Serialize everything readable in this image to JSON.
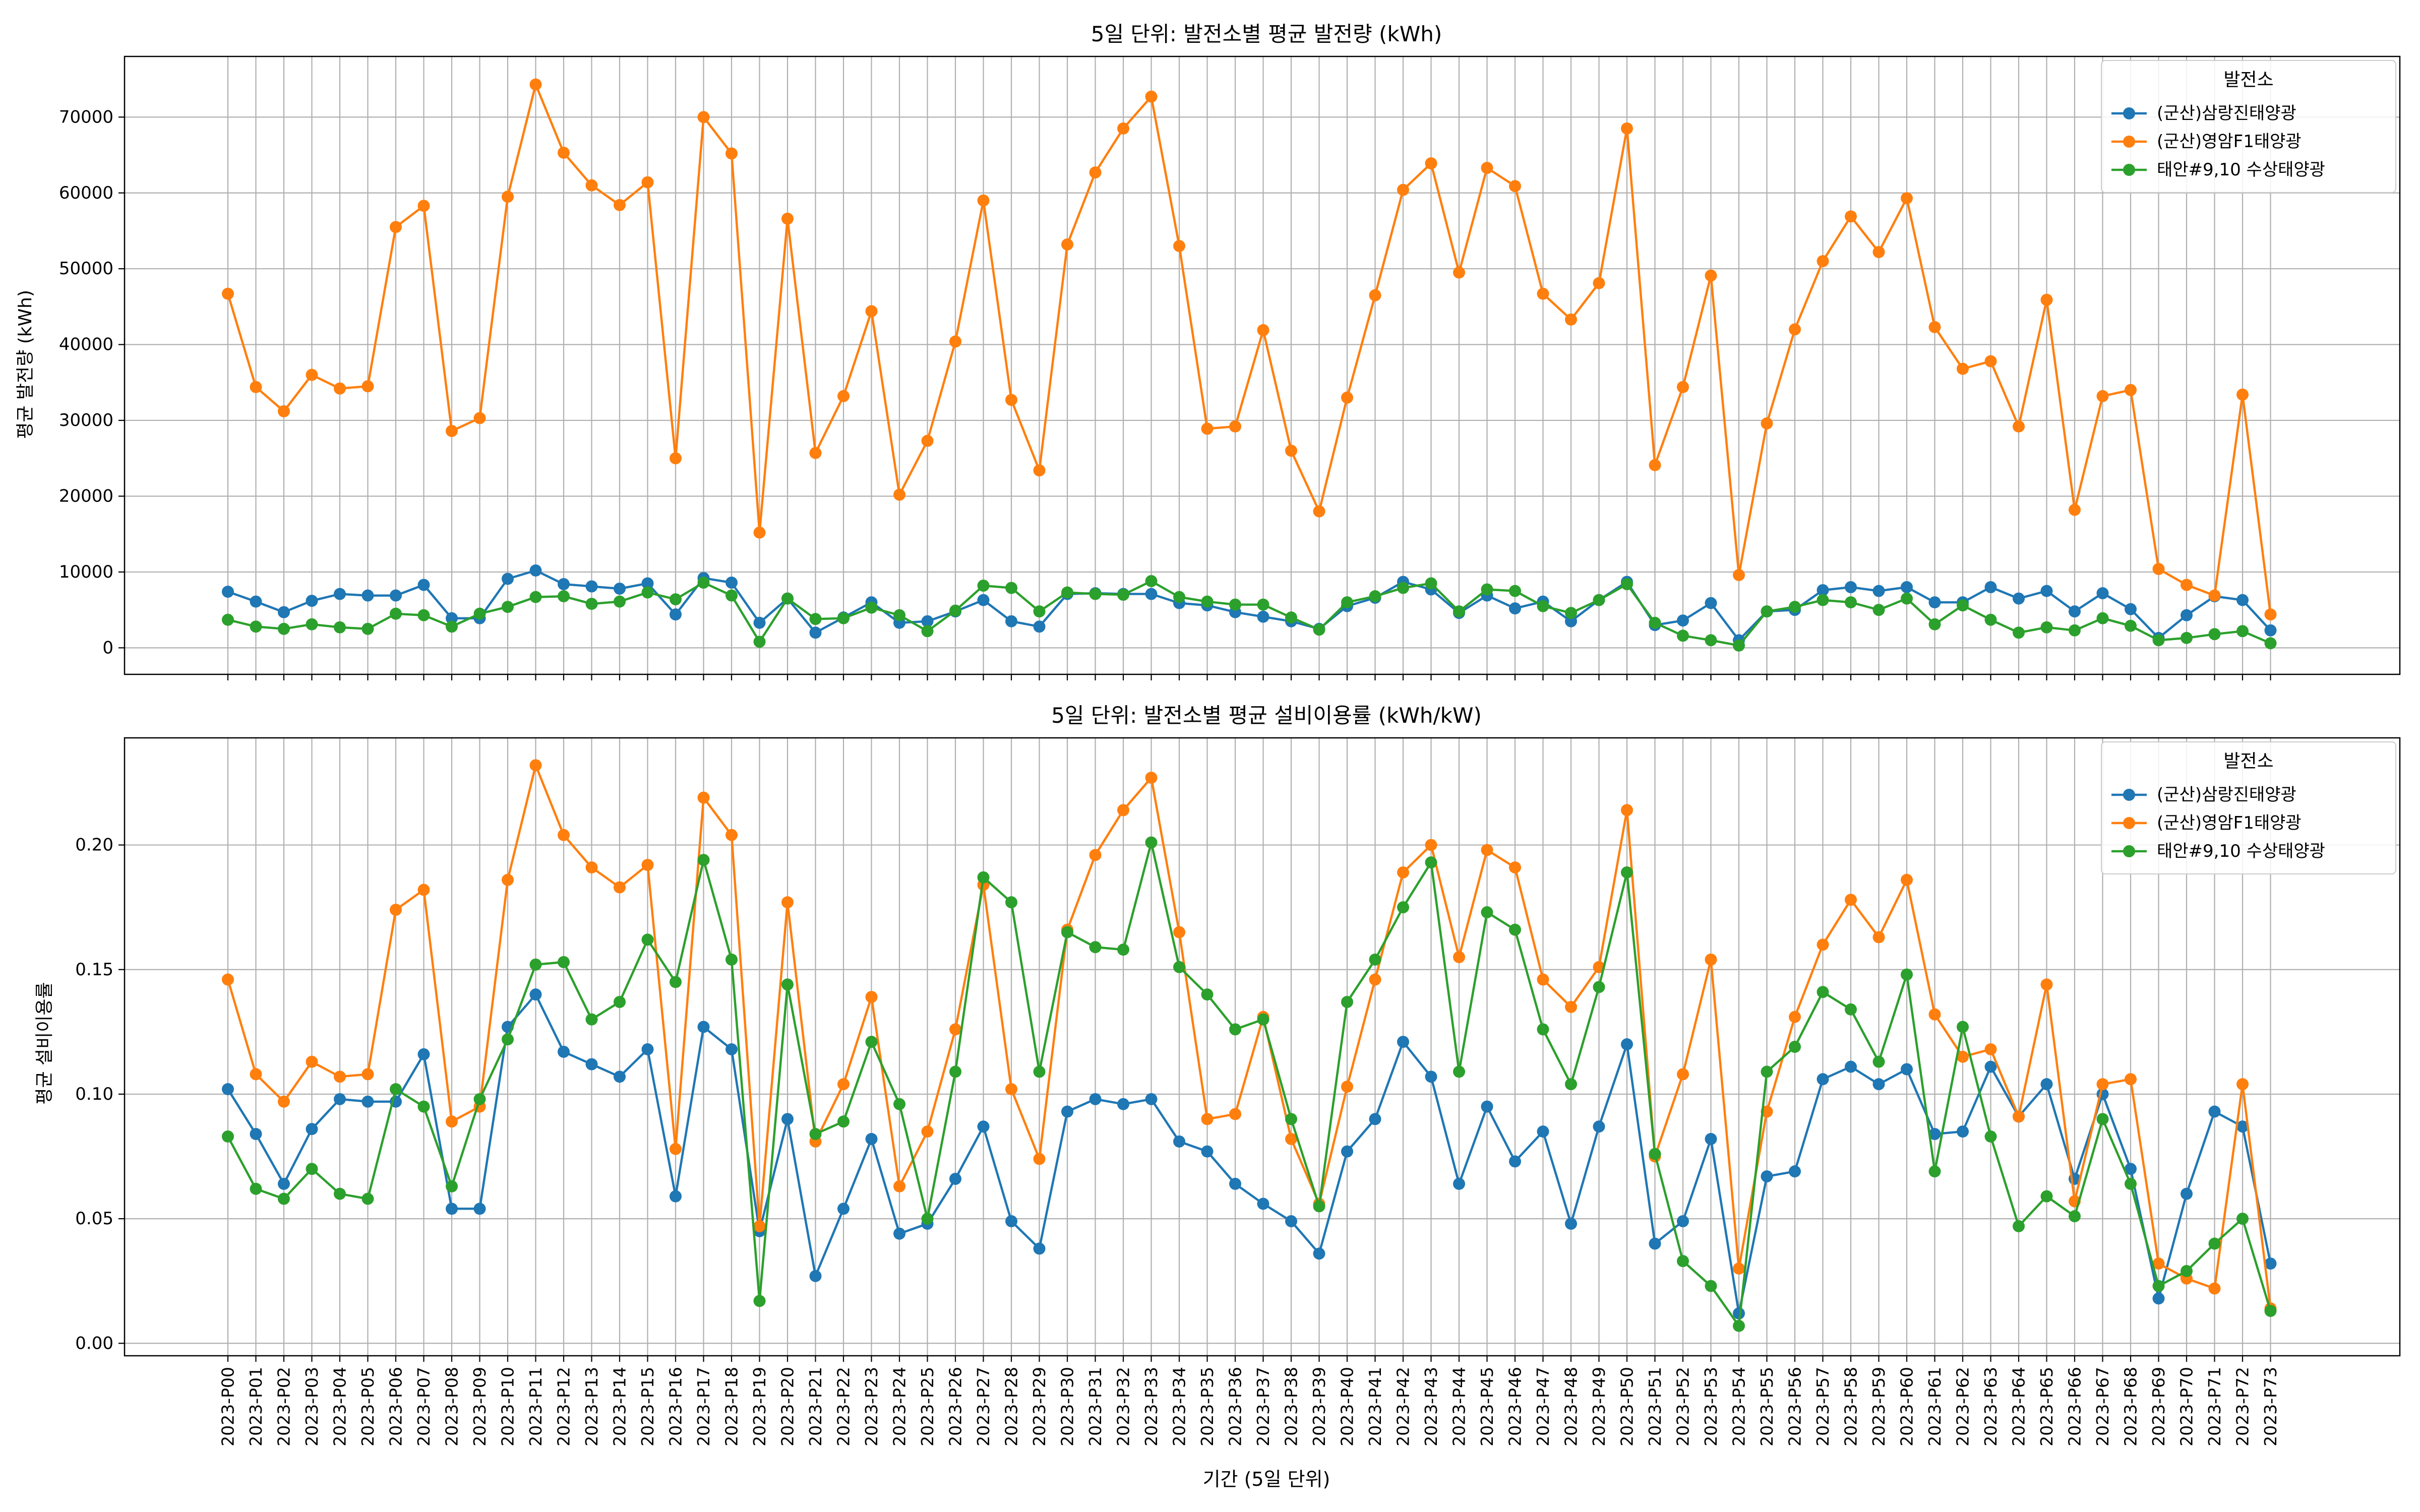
{
  "colors": {
    "samnangjin": "#1f77b4",
    "yeongam": "#ff7f0e",
    "taean": "#2ca02c",
    "grid": "#b0b0b0",
    "axis": "#000000"
  },
  "xlabel": "기간 (5일 단위)",
  "legend_title": "발전소",
  "chart_data": [
    {
      "type": "line",
      "title": "5일 단위: 발전소별 평균 발전량 (kWh)",
      "xlabel": "",
      "ylabel": "평균 발전량 (kWh)",
      "ylim": [
        -3500,
        78000
      ],
      "yticks": [
        0,
        10000,
        20000,
        30000,
        40000,
        50000,
        60000,
        70000
      ],
      "ytick_labels": [
        "0",
        "10000",
        "20000",
        "30000",
        "40000",
        "50000",
        "60000",
        "70000"
      ],
      "grid": true,
      "legend": "top-right",
      "legend_title": "발전소",
      "categories": [
        "2023-P00",
        "2023-P01",
        "2023-P02",
        "2023-P03",
        "2023-P04",
        "2023-P05",
        "2023-P06",
        "2023-P07",
        "2023-P08",
        "2023-P09",
        "2023-P10",
        "2023-P11",
        "2023-P12",
        "2023-P13",
        "2023-P14",
        "2023-P15",
        "2023-P16",
        "2023-P17",
        "2023-P18",
        "2023-P19",
        "2023-P20",
        "2023-P21",
        "2023-P22",
        "2023-P23",
        "2023-P24",
        "2023-P25",
        "2023-P26",
        "2023-P27",
        "2023-P28",
        "2023-P29",
        "2023-P30",
        "2023-P31",
        "2023-P32",
        "2023-P33",
        "2023-P34",
        "2023-P35",
        "2023-P36",
        "2023-P37",
        "2023-P38",
        "2023-P39",
        "2023-P40",
        "2023-P41",
        "2023-P42",
        "2023-P43",
        "2023-P44",
        "2023-P45",
        "2023-P46",
        "2023-P47",
        "2023-P48",
        "2023-P49",
        "2023-P50",
        "2023-P51",
        "2023-P52",
        "2023-P53",
        "2023-P54",
        "2023-P55",
        "2023-P56",
        "2023-P57",
        "2023-P58",
        "2023-P59",
        "2023-P60",
        "2023-P61",
        "2023-P62",
        "2023-P63",
        "2023-P64",
        "2023-P65",
        "2023-P66",
        "2023-P67",
        "2023-P68",
        "2023-P69",
        "2023-P70",
        "2023-P71",
        "2023-P72",
        "2023-P73"
      ],
      "series": [
        {
          "name": "(군산)삼랑진태양광",
          "color": "#1f77b4",
          "values": [
            7400,
            6100,
            4700,
            6200,
            7100,
            6900,
            6900,
            8300,
            3900,
            3900,
            9100,
            10200,
            8400,
            8100,
            7800,
            8500,
            4400,
            9200,
            8600,
            3300,
            6500,
            2000,
            4000,
            6000,
            3300,
            3500,
            4800,
            6300,
            3500,
            2800,
            7100,
            7200,
            7100,
            7100,
            5900,
            5600,
            4700,
            4100,
            3500,
            2500,
            5500,
            6600,
            8700,
            7700,
            4600,
            6900,
            5200,
            6100,
            3500,
            6300,
            8700,
            3000,
            3600,
            5900,
            1000,
            4800,
            5000,
            7600,
            8000,
            7500,
            8000,
            6000,
            6000,
            8000,
            6500,
            7500,
            4800,
            7200,
            5100,
            1300,
            4300,
            6800,
            6300,
            2300
          ]
        },
        {
          "name": "(군산)영암F1태양광",
          "color": "#ff7f0e",
          "values": [
            46700,
            34400,
            31200,
            36000,
            34200,
            34500,
            55500,
            58300,
            28600,
            30300,
            59500,
            74300,
            65300,
            61000,
            58400,
            61400,
            25000,
            70000,
            65200,
            15200,
            56600,
            25700,
            33200,
            44400,
            20200,
            27300,
            40400,
            59000,
            32700,
            23400,
            53200,
            62700,
            68500,
            72700,
            53000,
            28900,
            29200,
            41900,
            26000,
            18000,
            33000,
            46500,
            60400,
            63900,
            49500,
            63300,
            60900,
            46700,
            43300,
            48100,
            68500,
            24100,
            34400,
            49100,
            9600,
            29600,
            42000,
            51000,
            56900,
            52200,
            59300,
            42300,
            36800,
            37800,
            29200,
            45900,
            18200,
            33200,
            34000,
            10400,
            8300,
            6900,
            33400,
            4400
          ]
        },
        {
          "name": "태안#9,10 수상태양광",
          "color": "#2ca02c",
          "values": [
            3700,
            2800,
            2500,
            3100,
            2700,
            2500,
            4500,
            4300,
            2800,
            4500,
            5400,
            6700,
            6800,
            5800,
            6100,
            7300,
            6400,
            8600,
            6900,
            800,
            6500,
            3800,
            3900,
            5300,
            4300,
            2200,
            4900,
            8200,
            7900,
            4800,
            7300,
            7100,
            7000,
            8800,
            6700,
            6100,
            5700,
            5700,
            4000,
            2400,
            6000,
            6800,
            7900,
            8500,
            4800,
            7700,
            7500,
            5500,
            4600,
            6300,
            8400,
            3300,
            1600,
            1000,
            300,
            4800,
            5400,
            6300,
            6000,
            5000,
            6500,
            3100,
            5600,
            3700,
            2000,
            2700,
            2300,
            3900,
            2900,
            1000,
            1300,
            1800,
            2200,
            600
          ]
        }
      ]
    },
    {
      "type": "line",
      "title": "5일 단위: 발전소별 평균 설비이용률 (kWh/kW)",
      "xlabel": "기간 (5일 단위)",
      "ylabel": "평균 설비이용률",
      "ylim": [
        -0.005,
        0.243
      ],
      "yticks": [
        0,
        0.05,
        0.1,
        0.15,
        0.2
      ],
      "ytick_labels": [
        "0.00",
        "0.05",
        "0.10",
        "0.15",
        "0.20"
      ],
      "grid": true,
      "legend": "top-right",
      "legend_title": "발전소",
      "categories": [
        "2023-P00",
        "2023-P01",
        "2023-P02",
        "2023-P03",
        "2023-P04",
        "2023-P05",
        "2023-P06",
        "2023-P07",
        "2023-P08",
        "2023-P09",
        "2023-P10",
        "2023-P11",
        "2023-P12",
        "2023-P13",
        "2023-P14",
        "2023-P15",
        "2023-P16",
        "2023-P17",
        "2023-P18",
        "2023-P19",
        "2023-P20",
        "2023-P21",
        "2023-P22",
        "2023-P23",
        "2023-P24",
        "2023-P25",
        "2023-P26",
        "2023-P27",
        "2023-P28",
        "2023-P29",
        "2023-P30",
        "2023-P31",
        "2023-P32",
        "2023-P33",
        "2023-P34",
        "2023-P35",
        "2023-P36",
        "2023-P37",
        "2023-P38",
        "2023-P39",
        "2023-P40",
        "2023-P41",
        "2023-P42",
        "2023-P43",
        "2023-P44",
        "2023-P45",
        "2023-P46",
        "2023-P47",
        "2023-P48",
        "2023-P49",
        "2023-P50",
        "2023-P51",
        "2023-P52",
        "2023-P53",
        "2023-P54",
        "2023-P55",
        "2023-P56",
        "2023-P57",
        "2023-P58",
        "2023-P59",
        "2023-P60",
        "2023-P61",
        "2023-P62",
        "2023-P63",
        "2023-P64",
        "2023-P65",
        "2023-P66",
        "2023-P67",
        "2023-P68",
        "2023-P69",
        "2023-P70",
        "2023-P71",
        "2023-P72",
        "2023-P73"
      ],
      "series": [
        {
          "name": "(군산)삼랑진태양광",
          "color": "#1f77b4",
          "values": [
            0.102,
            0.084,
            0.064,
            0.086,
            0.098,
            0.097,
            0.097,
            0.116,
            0.054,
            0.054,
            0.127,
            0.14,
            0.117,
            0.112,
            0.107,
            0.118,
            0.059,
            0.127,
            0.118,
            0.045,
            0.09,
            0.027,
            0.054,
            0.082,
            0.044,
            0.048,
            0.066,
            0.087,
            0.049,
            0.038,
            0.093,
            0.098,
            0.096,
            0.098,
            0.081,
            0.077,
            0.064,
            0.056,
            0.049,
            0.036,
            0.077,
            0.09,
            0.121,
            0.107,
            0.064,
            0.095,
            0.073,
            0.085,
            0.048,
            0.087,
            0.12,
            0.04,
            0.049,
            0.082,
            0.012,
            0.067,
            0.069,
            0.106,
            0.111,
            0.104,
            0.11,
            0.084,
            0.085,
            0.111,
            0.091,
            0.104,
            0.066,
            0.1,
            0.07,
            0.018,
            0.06,
            0.093,
            0.087,
            0.032
          ]
        },
        {
          "name": "(군산)영암F1태양광",
          "color": "#ff7f0e",
          "values": [
            0.146,
            0.108,
            0.097,
            0.113,
            0.107,
            0.108,
            0.174,
            0.182,
            0.089,
            0.095,
            0.186,
            0.232,
            0.204,
            0.191,
            0.183,
            0.192,
            0.078,
            0.219,
            0.204,
            0.047,
            0.177,
            0.081,
            0.104,
            0.139,
            0.063,
            0.085,
            0.126,
            0.184,
            0.102,
            0.074,
            0.166,
            0.196,
            0.214,
            0.227,
            0.165,
            0.09,
            0.092,
            0.131,
            0.082,
            0.056,
            0.103,
            0.146,
            0.189,
            0.2,
            0.155,
            0.198,
            0.191,
            0.146,
            0.135,
            0.151,
            0.214,
            0.075,
            0.108,
            0.154,
            0.03,
            0.093,
            0.131,
            0.16,
            0.178,
            0.163,
            0.186,
            0.132,
            0.115,
            0.118,
            0.091,
            0.144,
            0.057,
            0.104,
            0.106,
            0.032,
            0.026,
            0.022,
            0.104,
            0.014
          ]
        },
        {
          "name": "태안#9,10 수상태양광",
          "color": "#2ca02c",
          "values": [
            0.083,
            0.062,
            0.058,
            0.07,
            0.06,
            0.058,
            0.102,
            0.095,
            0.063,
            0.098,
            0.122,
            0.152,
            0.153,
            0.13,
            0.137,
            0.162,
            0.145,
            0.194,
            0.154,
            0.017,
            0.144,
            0.084,
            0.089,
            0.121,
            0.096,
            0.05,
            0.109,
            0.187,
            0.177,
            0.109,
            0.165,
            0.159,
            0.158,
            0.201,
            0.151,
            0.14,
            0.126,
            0.13,
            0.09,
            0.055,
            0.137,
            0.154,
            0.175,
            0.193,
            0.109,
            0.173,
            0.166,
            0.126,
            0.104,
            0.143,
            0.189,
            0.076,
            0.033,
            0.023,
            0.007,
            0.109,
            0.119,
            0.141,
            0.134,
            0.113,
            0.148,
            0.069,
            0.127,
            0.083,
            0.047,
            0.059,
            0.051,
            0.09,
            0.064,
            0.023,
            0.029,
            0.04,
            0.05,
            0.013
          ]
        }
      ]
    }
  ]
}
